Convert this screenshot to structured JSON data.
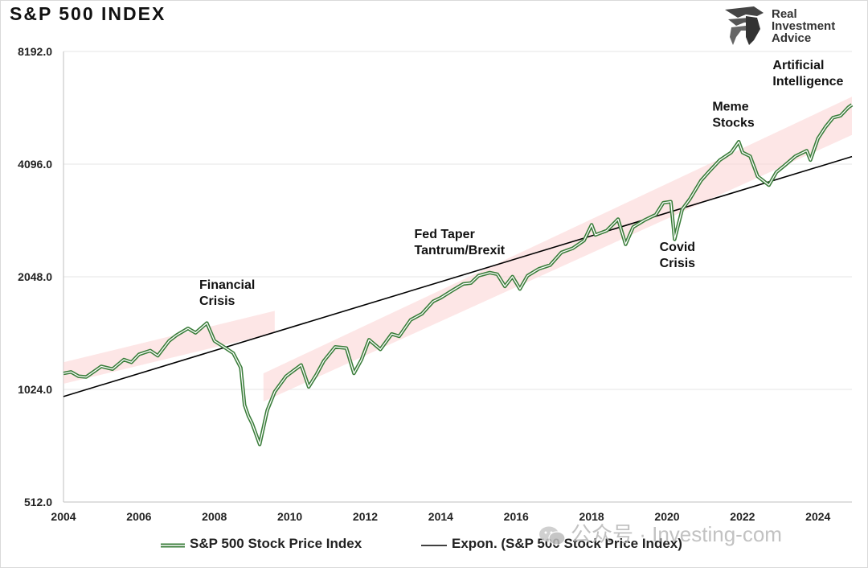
{
  "title": "S&P 500 INDEX",
  "logo": {
    "line1": "Real",
    "line2": "Investment",
    "line3": "Advice"
  },
  "watermark": {
    "text": "公众号 · Investing-com"
  },
  "chart_data": {
    "type": "line",
    "title": "S&P 500 INDEX",
    "y_scale": "log2",
    "ylim": [
      512,
      8192
    ],
    "xlim": [
      2004,
      2024.9
    ],
    "y_ticks": [
      512,
      1024,
      2048,
      4096,
      8192
    ],
    "y_tick_labels": [
      "512.0",
      "1024.0",
      "2048.0",
      "4096.0",
      "8192.0"
    ],
    "x_ticks": [
      2004,
      2006,
      2008,
      2010,
      2012,
      2014,
      2016,
      2018,
      2020,
      2022,
      2024
    ],
    "x_tick_labels": [
      "2004",
      "2006",
      "2008",
      "2010",
      "2012",
      "2014",
      "2016",
      "2018",
      "2020",
      "2022",
      "2024"
    ],
    "grid": "horizontal",
    "legend_position": "bottom",
    "series": [
      {
        "name": "S&P 500 Stock Price Index",
        "color": "#3a7d3a",
        "points": [
          [
            2004.0,
            1130
          ],
          [
            2004.2,
            1140
          ],
          [
            2004.4,
            1110
          ],
          [
            2004.6,
            1105
          ],
          [
            2004.9,
            1160
          ],
          [
            2005.0,
            1180
          ],
          [
            2005.3,
            1160
          ],
          [
            2005.6,
            1230
          ],
          [
            2005.8,
            1210
          ],
          [
            2006.0,
            1270
          ],
          [
            2006.3,
            1300
          ],
          [
            2006.5,
            1260
          ],
          [
            2006.8,
            1380
          ],
          [
            2007.0,
            1430
          ],
          [
            2007.3,
            1490
          ],
          [
            2007.5,
            1450
          ],
          [
            2007.8,
            1540
          ],
          [
            2008.0,
            1380
          ],
          [
            2008.3,
            1320
          ],
          [
            2008.5,
            1280
          ],
          [
            2008.7,
            1170
          ],
          [
            2008.8,
            930
          ],
          [
            2008.9,
            870
          ],
          [
            2009.0,
            830
          ],
          [
            2009.2,
            730
          ],
          [
            2009.4,
            900
          ],
          [
            2009.6,
            1010
          ],
          [
            2009.9,
            1110
          ],
          [
            2010.1,
            1150
          ],
          [
            2010.3,
            1190
          ],
          [
            2010.5,
            1040
          ],
          [
            2010.7,
            1120
          ],
          [
            2010.9,
            1220
          ],
          [
            2011.2,
            1330
          ],
          [
            2011.5,
            1320
          ],
          [
            2011.7,
            1130
          ],
          [
            2011.9,
            1230
          ],
          [
            2012.1,
            1390
          ],
          [
            2012.4,
            1310
          ],
          [
            2012.7,
            1440
          ],
          [
            2012.9,
            1420
          ],
          [
            2013.2,
            1570
          ],
          [
            2013.5,
            1630
          ],
          [
            2013.8,
            1760
          ],
          [
            2014.0,
            1800
          ],
          [
            2014.3,
            1880
          ],
          [
            2014.6,
            1960
          ],
          [
            2014.8,
            1970
          ],
          [
            2015.0,
            2060
          ],
          [
            2015.3,
            2100
          ],
          [
            2015.5,
            2080
          ],
          [
            2015.7,
            1930
          ],
          [
            2015.9,
            2050
          ],
          [
            2016.1,
            1900
          ],
          [
            2016.3,
            2060
          ],
          [
            2016.6,
            2150
          ],
          [
            2016.9,
            2200
          ],
          [
            2017.2,
            2380
          ],
          [
            2017.5,
            2440
          ],
          [
            2017.8,
            2560
          ],
          [
            2018.0,
            2820
          ],
          [
            2018.1,
            2650
          ],
          [
            2018.4,
            2720
          ],
          [
            2018.7,
            2920
          ],
          [
            2018.9,
            2500
          ],
          [
            2019.1,
            2780
          ],
          [
            2019.4,
            2900
          ],
          [
            2019.7,
            3000
          ],
          [
            2019.9,
            3230
          ],
          [
            2020.1,
            3250
          ],
          [
            2020.2,
            2580
          ],
          [
            2020.4,
            3100
          ],
          [
            2020.6,
            3300
          ],
          [
            2020.9,
            3700
          ],
          [
            2021.1,
            3900
          ],
          [
            2021.4,
            4200
          ],
          [
            2021.7,
            4400
          ],
          [
            2021.9,
            4700
          ],
          [
            2022.0,
            4400
          ],
          [
            2022.2,
            4300
          ],
          [
            2022.4,
            3800
          ],
          [
            2022.7,
            3600
          ],
          [
            2022.9,
            3900
          ],
          [
            2023.1,
            4050
          ],
          [
            2023.4,
            4300
          ],
          [
            2023.7,
            4450
          ],
          [
            2023.8,
            4200
          ],
          [
            2024.0,
            4800
          ],
          [
            2024.2,
            5150
          ],
          [
            2024.4,
            5450
          ],
          [
            2024.6,
            5520
          ],
          [
            2024.8,
            5800
          ],
          [
            2024.9,
            5900
          ]
        ]
      },
      {
        "name": "Expon. (S&P 500 Stock Price Index)",
        "color": "#000000",
        "points": [
          [
            2004.0,
            980
          ],
          [
            2024.9,
            4290
          ]
        ]
      }
    ],
    "annotations": [
      {
        "lines": [
          "Financial",
          "Crisis"
        ],
        "x": 2007.6,
        "y": 1900
      },
      {
        "lines": [
          "Fed Taper",
          "Tantrum/Brexit"
        ],
        "x": 2013.3,
        "y": 2600
      },
      {
        "lines": [
          "Covid",
          "Crisis"
        ],
        "x": 2019.8,
        "y": 2400
      },
      {
        "lines": [
          "Meme",
          "Stocks"
        ],
        "x": 2021.2,
        "y": 5700
      },
      {
        "lines": [
          "Artificial",
          "Intelligence"
        ],
        "x": 2022.8,
        "y": 7350
      }
    ],
    "bands": [
      {
        "x0": 2004.0,
        "y0_low": 1060,
        "y0_high": 1210,
        "x1": 2009.6,
        "y1_low": 1450,
        "y1_high": 1660
      },
      {
        "x0": 2009.3,
        "y0_low": 950,
        "y0_high": 1130,
        "x1": 2024.9,
        "y1_low": 4900,
        "y1_high": 6200
      }
    ]
  }
}
